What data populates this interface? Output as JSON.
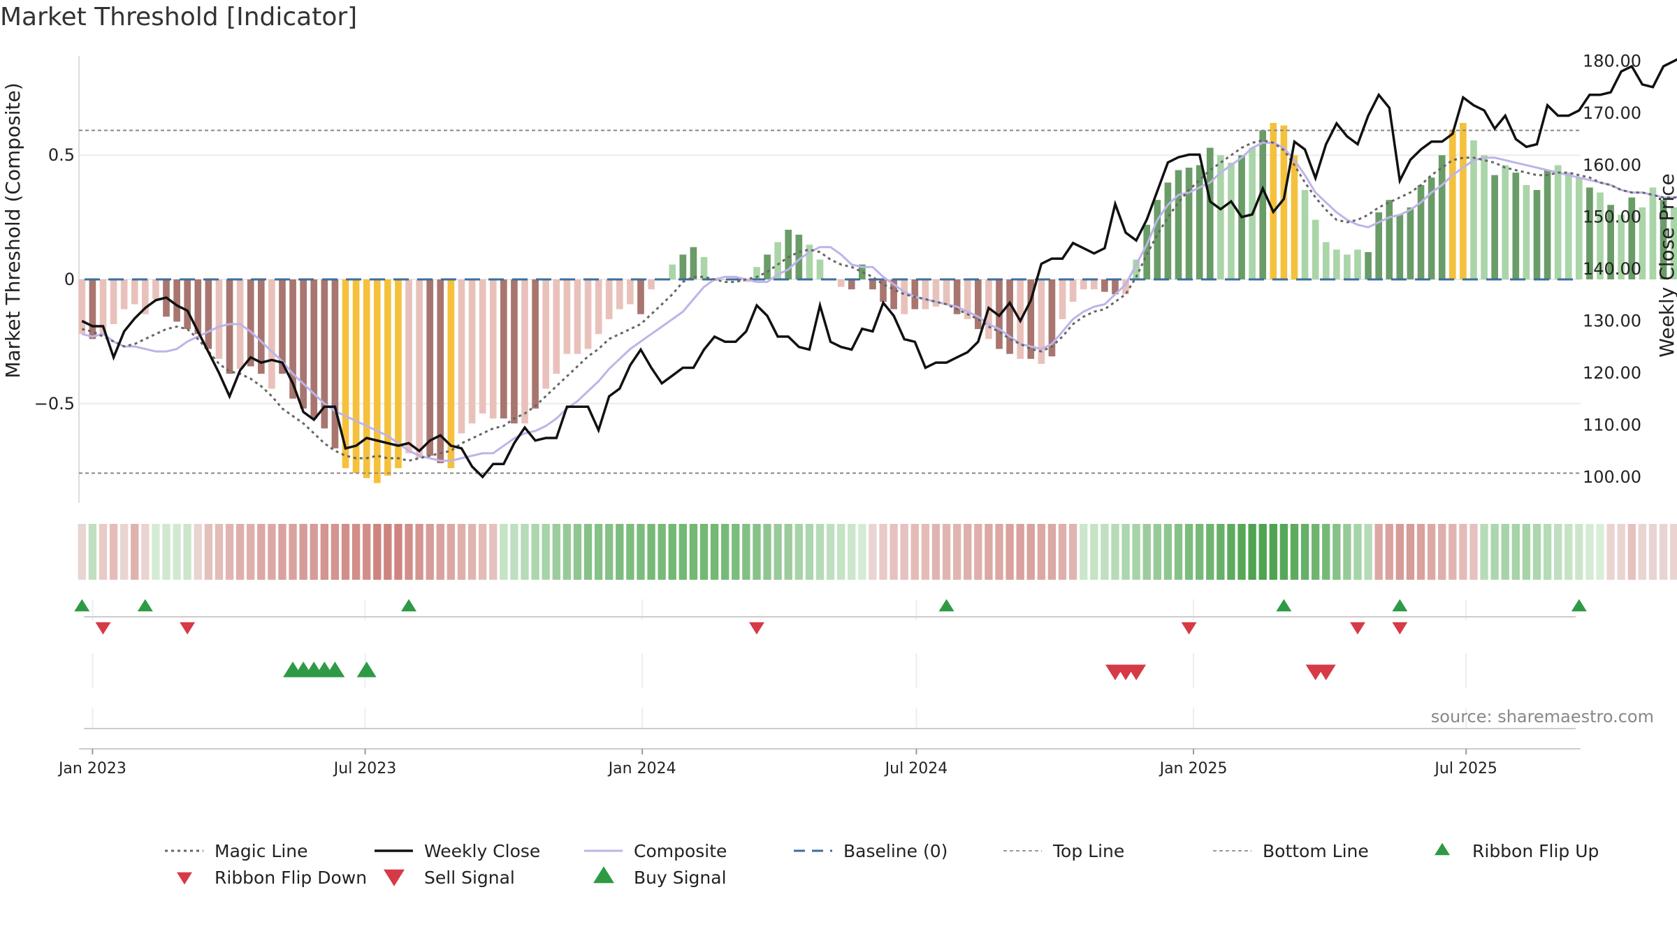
{
  "chart_data": {
    "type": "bar",
    "title": "Market Threshold [Indicator]",
    "ylabel": "Market Threshold (Composite)",
    "y2label": "Weekly Close Price",
    "source": "source: sharemaestro.com",
    "ylim": [
      -0.9,
      0.9
    ],
    "y2lim": [
      95.0,
      181.0
    ],
    "y_ticks": [
      {
        "v": 0.5,
        "label": "0.5"
      },
      {
        "v": 0,
        "label": "0"
      },
      {
        "v": -0.5,
        "label": "−0.5"
      }
    ],
    "y2_ticks": [
      "180.00",
      "170.00",
      "160.00",
      "150.00",
      "140.00",
      "130.00",
      "120.00",
      "110.00",
      "100.00"
    ],
    "x_range": [
      "2022-12-23",
      "2025-09-15"
    ],
    "x_ticks": [
      {
        "label": "Jan 2023",
        "date": "2023-01-01"
      },
      {
        "label": "Jul 2023",
        "date": "2023-07-01"
      },
      {
        "label": "Jan 2024",
        "date": "2024-01-01"
      },
      {
        "label": "Jul 2024",
        "date": "2024-07-01"
      },
      {
        "label": "Jan 2025",
        "date": "2025-01-01"
      },
      {
        "label": "Jul 2025",
        "date": "2025-07-01"
      }
    ],
    "first_week": "2022-12-25",
    "week_days": 7,
    "top_line": 0.6,
    "bottom_line": -0.78,
    "composite": [
      -0.22,
      -0.23,
      -0.22,
      -0.25,
      -0.27,
      -0.27,
      -0.28,
      -0.29,
      -0.29,
      -0.28,
      -0.25,
      -0.23,
      -0.21,
      -0.19,
      -0.18,
      -0.18,
      -0.21,
      -0.25,
      -0.29,
      -0.33,
      -0.38,
      -0.42,
      -0.46,
      -0.5,
      -0.53,
      -0.55,
      -0.57,
      -0.59,
      -0.61,
      -0.63,
      -0.66,
      -0.69,
      -0.71,
      -0.72,
      -0.73,
      -0.73,
      -0.72,
      -0.71,
      -0.7,
      -0.7,
      -0.67,
      -0.64,
      -0.62,
      -0.61,
      -0.59,
      -0.56,
      -0.52,
      -0.49,
      -0.45,
      -0.41,
      -0.36,
      -0.32,
      -0.28,
      -0.25,
      -0.22,
      -0.19,
      -0.16,
      -0.13,
      -0.08,
      -0.03,
      0.0,
      0.01,
      0.01,
      0.0,
      -0.01,
      -0.01,
      0.02,
      0.04,
      0.08,
      0.11,
      0.13,
      0.13,
      0.1,
      0.06,
      0.05,
      0.05,
      0.01,
      -0.02,
      -0.05,
      -0.07,
      -0.08,
      -0.09,
      -0.1,
      -0.11,
      -0.13,
      -0.15,
      -0.18,
      -0.2,
      -0.23,
      -0.26,
      -0.27,
      -0.28,
      -0.26,
      -0.21,
      -0.16,
      -0.13,
      -0.11,
      -0.1,
      -0.06,
      -0.02,
      0.06,
      0.14,
      0.24,
      0.3,
      0.34,
      0.35,
      0.37,
      0.39,
      0.43,
      0.46,
      0.49,
      0.53,
      0.55,
      0.55,
      0.53,
      0.48,
      0.42,
      0.35,
      0.31,
      0.27,
      0.24,
      0.22,
      0.21,
      0.23,
      0.25,
      0.26,
      0.28,
      0.31,
      0.35,
      0.38,
      0.42,
      0.45,
      0.48,
      0.49,
      0.49,
      0.48,
      0.47,
      0.46,
      0.45,
      0.44,
      0.43,
      0.42,
      0.41,
      0.4,
      0.39,
      0.38,
      0.36,
      0.35,
      0.35,
      0.34,
      0.33,
      0.33,
      0.34,
      0.35,
      0.36
    ],
    "bar_values": [
      -0.22,
      -0.24,
      -0.22,
      -0.18,
      -0.12,
      -0.1,
      -0.14,
      -0.08,
      -0.15,
      -0.17,
      -0.2,
      -0.22,
      -0.28,
      -0.32,
      -0.38,
      -0.36,
      -0.35,
      -0.38,
      -0.44,
      -0.38,
      -0.48,
      -0.52,
      -0.56,
      -0.6,
      -0.68,
      -0.76,
      -0.78,
      -0.8,
      -0.82,
      -0.79,
      -0.76,
      -0.7,
      -0.72,
      -0.71,
      -0.74,
      -0.76,
      -0.62,
      -0.58,
      -0.54,
      -0.56,
      -0.56,
      -0.58,
      -0.58,
      -0.52,
      -0.44,
      -0.38,
      -0.3,
      -0.3,
      -0.28,
      -0.22,
      -0.16,
      -0.12,
      -0.1,
      -0.14,
      -0.04,
      0.0,
      0.06,
      0.1,
      0.13,
      0.09,
      0.0,
      0.0,
      0.0,
      -0.01,
      0.05,
      0.1,
      0.15,
      0.2,
      0.18,
      0.14,
      0.08,
      0.0,
      -0.03,
      -0.04,
      0.06,
      -0.04,
      -0.09,
      -0.12,
      -0.14,
      -0.12,
      -0.12,
      -0.11,
      -0.1,
      -0.14,
      -0.16,
      -0.2,
      -0.24,
      -0.28,
      -0.3,
      -0.32,
      -0.32,
      -0.34,
      -0.31,
      -0.16,
      -0.09,
      -0.04,
      -0.04,
      -0.05,
      -0.06,
      -0.06,
      0.08,
      0.22,
      0.32,
      0.39,
      0.44,
      0.45,
      0.46,
      0.53,
      0.5,
      0.47,
      0.5,
      0.53,
      0.6,
      0.63,
      0.62,
      0.5,
      0.36,
      0.24,
      0.15,
      0.12,
      0.1,
      0.12,
      0.11,
      0.27,
      0.32,
      0.26,
      0.29,
      0.38,
      0.41,
      0.5,
      0.6,
      0.63,
      0.56,
      0.5,
      0.42,
      0.46,
      0.43,
      0.38,
      0.36,
      0.44,
      0.46,
      0.43,
      0.41,
      0.37,
      0.35,
      0.3,
      0.26,
      0.33,
      0.29,
      0.37,
      0.32,
      0.29,
      0.28,
      0.38,
      0.36,
      0.37,
      0.4,
      0.44,
      0.49
    ],
    "bar_colors": [
      "#e9c1bb",
      "#a8766f",
      "#e9c1bb",
      "#e9c1bb",
      "#e9c1bb",
      "#e9c1bb",
      "#e9c1bb",
      "#e9c1bb",
      "#a8766f",
      "#a8766f",
      "#a8766f",
      "#a8766f",
      "#a8766f",
      "#e9c1bb",
      "#a8766f",
      "#e9c1bb",
      "#a8766f",
      "#a8766f",
      "#e9c1bb",
      "#a8766f",
      "#a8766f",
      "#a8766f",
      "#a8766f",
      "#a8766f",
      "#a8766f",
      "#f5c13c",
      "#f5c13c",
      "#f5c13c",
      "#f5c13c",
      "#f5c13c",
      "#f5c13c",
      "#e9c1bb",
      "#e9c1bb",
      "#a8766f",
      "#a8766f",
      "#f5c13c",
      "#e9c1bb",
      "#e9c1bb",
      "#e9c1bb",
      "#e9c1bb",
      "#a8766f",
      "#a8766f",
      "#e9c1bb",
      "#a8766f",
      "#e9c1bb",
      "#e9c1bb",
      "#e9c1bb",
      "#e9c1bb",
      "#e9c1bb",
      "#e9c1bb",
      "#e9c1bb",
      "#e9c1bb",
      "#e9c1bb",
      "#a8766f",
      "#e9c1bb",
      "#e9c1bb",
      "#aad5a8",
      "#6a9c68",
      "#6a9c68",
      "#aad5a8",
      "#aad5a8",
      "#aad5a8",
      "#aad5a8",
      "#e9c1bb",
      "#aad5a8",
      "#6a9c68",
      "#aad5a8",
      "#6a9c68",
      "#6a9c68",
      "#aad5a8",
      "#aad5a8",
      "#aad5a8",
      "#e9c1bb",
      "#a8766f",
      "#6a9c68",
      "#a8766f",
      "#a8766f",
      "#a8766f",
      "#e9c1bb",
      "#a8766f",
      "#e9c1bb",
      "#e9c1bb",
      "#e9c1bb",
      "#a8766f",
      "#e9c1bb",
      "#a8766f",
      "#e9c1bb",
      "#a8766f",
      "#a8766f",
      "#e9c1bb",
      "#a8766f",
      "#e9c1bb",
      "#a8766f",
      "#e9c1bb",
      "#e9c1bb",
      "#e9c1bb",
      "#e9c1bb",
      "#a8766f",
      "#a8766f",
      "#e9c1bb",
      "#aad5a8",
      "#6a9c68",
      "#6a9c68",
      "#6a9c68",
      "#6a9c68",
      "#6a9c68",
      "#6a9c68",
      "#6a9c68",
      "#aad5a8",
      "#aad5a8",
      "#6a9c68",
      "#aad5a8",
      "#6a9c68",
      "#f5c13c",
      "#f5c13c",
      "#f5c13c",
      "#aad5a8",
      "#aad5a8",
      "#aad5a8",
      "#aad5a8",
      "#aad5a8",
      "#aad5a8",
      "#6a9c68",
      "#6a9c68",
      "#6a9c68",
      "#6a9c68",
      "#6a9c68",
      "#6a9c68",
      "#6a9c68",
      "#6a9c68",
      "#f5c13c",
      "#f5c13c",
      "#aad5a8",
      "#aad5a8",
      "#6a9c68",
      "#aad5a8",
      "#6a9c68",
      "#aad5a8",
      "#6a9c68",
      "#6a9c68",
      "#aad5a8",
      "#aad5a8",
      "#aad5a8",
      "#6a9c68",
      "#aad5a8",
      "#6a9c68",
      "#aad5a8",
      "#6a9c68",
      "#aad5a8",
      "#aad5a8",
      "#6a9c68",
      "#aad5a8",
      "#6a9c68",
      "#6a9c68",
      "#6a9c68",
      "#6a9c68"
    ],
    "magic_line": [
      -0.2,
      -0.21,
      -0.23,
      -0.25,
      -0.27,
      -0.26,
      -0.24,
      -0.22,
      -0.2,
      -0.19,
      -0.2,
      -0.24,
      -0.29,
      -0.34,
      -0.37,
      -0.38,
      -0.4,
      -0.43,
      -0.47,
      -0.52,
      -0.55,
      -0.58,
      -0.62,
      -0.66,
      -0.69,
      -0.71,
      -0.72,
      -0.72,
      -0.71,
      -0.72,
      -0.72,
      -0.73,
      -0.72,
      -0.71,
      -0.7,
      -0.69,
      -0.66,
      -0.64,
      -0.62,
      -0.6,
      -0.59,
      -0.56,
      -0.54,
      -0.51,
      -0.47,
      -0.43,
      -0.39,
      -0.35,
      -0.31,
      -0.28,
      -0.24,
      -0.22,
      -0.2,
      -0.18,
      -0.14,
      -0.1,
      -0.06,
      -0.01,
      0.01,
      0.01,
      0.0,
      -0.01,
      -0.01,
      0.0,
      0.01,
      0.03,
      0.06,
      0.09,
      0.11,
      0.12,
      0.11,
      0.08,
      0.06,
      0.05,
      0.03,
      0.01,
      -0.02,
      -0.04,
      -0.06,
      -0.07,
      -0.08,
      -0.09,
      -0.1,
      -0.12,
      -0.14,
      -0.16,
      -0.19,
      -0.21,
      -0.24,
      -0.26,
      -0.28,
      -0.29,
      -0.27,
      -0.23,
      -0.18,
      -0.15,
      -0.13,
      -0.12,
      -0.09,
      -0.06,
      0.01,
      0.1,
      0.18,
      0.25,
      0.31,
      0.36,
      0.4,
      0.44,
      0.47,
      0.5,
      0.53,
      0.55,
      0.56,
      0.55,
      0.52,
      0.46,
      0.39,
      0.33,
      0.28,
      0.24,
      0.23,
      0.24,
      0.26,
      0.29,
      0.31,
      0.33,
      0.35,
      0.38,
      0.42,
      0.45,
      0.48,
      0.49,
      0.49,
      0.48,
      0.47,
      0.45,
      0.44,
      0.43,
      0.42,
      0.42,
      0.43,
      0.43,
      0.42,
      0.41,
      0.39,
      0.38,
      0.36,
      0.35,
      0.35,
      0.34,
      0.33,
      0.33,
      0.33,
      0.34,
      0.35,
      0.37,
      0.4
    ],
    "weekly_close": [
      130.0,
      129.0,
      129.0,
      123.0,
      128.0,
      130.5,
      132.5,
      134.0,
      134.5,
      133.0,
      132.0,
      128.0,
      124.0,
      120.0,
      115.5,
      120.5,
      123.0,
      122.0,
      122.5,
      122.0,
      118.0,
      112.5,
      111.0,
      113.5,
      113.5,
      105.5,
      106.0,
      107.5,
      107.0,
      106.5,
      106.0,
      106.5,
      105.0,
      107.0,
      108.0,
      106.0,
      105.5,
      102.0,
      100.0,
      102.5,
      102.5,
      106.5,
      109.5,
      107.0,
      107.5,
      107.5,
      113.5,
      113.5,
      113.5,
      109.0,
      115.5,
      117.0,
      121.5,
      124.5,
      121.0,
      118.0,
      119.5,
      121.0,
      121.0,
      124.5,
      127.0,
      126.0,
      126.0,
      128.0,
      133.0,
      131.0,
      127.0,
      127.0,
      125.0,
      124.5,
      133.0,
      126.0,
      125.0,
      124.5,
      128.5,
      128.0,
      133.5,
      131.0,
      126.5,
      126.0,
      121.0,
      122.0,
      122.0,
      123.0,
      124.0,
      126.0,
      132.5,
      131.0,
      133.5,
      130.0,
      134.0,
      141.0,
      142.0,
      142.0,
      145.0,
      144.0,
      143.0,
      144.0,
      152.5,
      147.0,
      145.5,
      149.5,
      155.0,
      160.5,
      161.5,
      162.0,
      162.0,
      153.0,
      151.5,
      153.0,
      150.0,
      150.5,
      155.5,
      151.0,
      153.5,
      164.5,
      163.0,
      157.5,
      164.0,
      168.0,
      165.5,
      164.0,
      169.5,
      173.5,
      171.0,
      157.0,
      161.0,
      163.0,
      164.5,
      164.5,
      166.0,
      173.0,
      171.5,
      170.5,
      167.0,
      169.5,
      165.0,
      163.5,
      164.0,
      171.5,
      169.5,
      169.5,
      170.5,
      173.5,
      173.5,
      174.0,
      178.0,
      179.0,
      175.5,
      175.0,
      179.0,
      180.0,
      181.0,
      176.5,
      175.5
    ],
    "ribbon": [
      "#e9d4d2",
      "#bfdfc0",
      "#e9cac6",
      "#e5bcb8",
      "#e9d4d2",
      "#e1b1ad",
      "#e9d4d2",
      "#d4ebd4",
      "#cfe8cf",
      "#d1e9d1",
      "#cce6cc",
      "#e9d4d2",
      "#e4c0bc",
      "#e3bcb8",
      "#e0b5b1",
      "#deafab",
      "#deafab",
      "#dba8a4",
      "#dba8a4",
      "#d9a29e",
      "#d9a29e",
      "#d69c98",
      "#d69c98",
      "#d4948f",
      "#d4948f",
      "#d28e89",
      "#d28e89",
      "#d28e89",
      "#cf8480",
      "#cf8480",
      "#cf8480",
      "#d28e89",
      "#d4948f",
      "#d69c98",
      "#d9a29e",
      "#dba8a4",
      "#deafab",
      "#e0b5b1",
      "#e3bcb8",
      "#e5c2bf",
      "#c4e4c4",
      "#bfdfc0",
      "#b6dbb7",
      "#acd6ad",
      "#a6d3a7",
      "#9ccc9d",
      "#97ca98",
      "#8fc690",
      "#86c187",
      "#86c187",
      "#86c187",
      "#7cbc7d",
      "#7cbc7d",
      "#7cbc7d",
      "#77ba78",
      "#77ba78",
      "#73b874",
      "#73b874",
      "#73b874",
      "#73b874",
      "#73b874",
      "#77ba78",
      "#7cbc7d",
      "#82bf83",
      "#86c187",
      "#8fc690",
      "#97ca98",
      "#9ccc9d",
      "#a6d3a7",
      "#acd6ad",
      "#b6dbb7",
      "#bfdfc0",
      "#c4e4c4",
      "#cce6cc",
      "#d4ebd4",
      "#e9d4d2",
      "#e9cac6",
      "#e5c2bf",
      "#e5c2bf",
      "#e3bcb8",
      "#e3bcb8",
      "#e0b5b1",
      "#e0b5b1",
      "#e0b5b1",
      "#deafab",
      "#deafab",
      "#dba8a4",
      "#dba8a4",
      "#d9a29e",
      "#d9a29e",
      "#d9a29e",
      "#dba8a4",
      "#dba8a4",
      "#deafab",
      "#e0b5b1",
      "#cce6cc",
      "#c4e4c4",
      "#bfdfc0",
      "#b6dbb7",
      "#acd6ad",
      "#a6d3a7",
      "#9ccc9d",
      "#97ca98",
      "#8fc690",
      "#86c187",
      "#7cbc7d",
      "#77ba78",
      "#6fb570",
      "#66b067",
      "#5eab5f",
      "#57a758",
      "#4fa351",
      "#4fa351",
      "#4fa351",
      "#57a758",
      "#5eab5f",
      "#66b067",
      "#6fb570",
      "#77ba78",
      "#86c187",
      "#97ca98",
      "#a6d3a7",
      "#b6dbb7",
      "#dba8a4",
      "#d9a29e",
      "#d69c98",
      "#d69c98",
      "#d9a29e",
      "#dba8a4",
      "#deafab",
      "#e0b5b1",
      "#e3bcb8",
      "#e5c2bf",
      "#b6dbb7",
      "#acd6ad",
      "#a6d3a7",
      "#a6d3a7",
      "#a6d3a7",
      "#acd6ad",
      "#b6dbb7",
      "#bfdfc0",
      "#c4e4c4",
      "#cce6cc",
      "#d4ebd4",
      "#d9eed9",
      "#e9d4d2",
      "#e9d4d2",
      "#e5c2bf",
      "#e9d4d2",
      "#e9d4d2",
      "#e9d4d2",
      "#e9d4d2",
      "#e9d4d2",
      "#e9d4d2",
      "#e9d4d2",
      "#e9d4d2",
      "#e9cac6",
      "#e9d4d2",
      "#bfdfc0"
    ],
    "ribbon_flip_up": [
      0,
      6,
      31,
      82,
      114,
      125,
      142
    ],
    "ribbon_flip_down": [
      2,
      10,
      64,
      105,
      121,
      125
    ],
    "buy_signal": [
      20,
      21,
      22,
      23,
      24,
      27
    ],
    "sell_signal": [
      98,
      99,
      100,
      117,
      118
    ],
    "colors": {
      "buy": "#2e9a46",
      "sell": "#d63a46",
      "baseline": "#3b6e9e",
      "composite": "#bdb4e8",
      "close": "#111111",
      "gold": "#f5c13c"
    },
    "legend": [
      {
        "label": "Magic Line",
        "icon": "dotted-line"
      },
      {
        "label": "Weekly Close",
        "icon": "solid-line"
      },
      {
        "label": "Composite",
        "icon": "lavender-line"
      },
      {
        "label": "Baseline (0)",
        "icon": "dashed-blue-line"
      },
      {
        "label": "Top Line",
        "icon": "dotted-grey-line"
      },
      {
        "label": "Bottom Line",
        "icon": "dotted-grey-line"
      },
      {
        "label": "Ribbon Flip Up",
        "icon": "green-up-triangle"
      },
      {
        "label": "Ribbon Flip Down",
        "icon": "red-down-triangle"
      },
      {
        "label": "Sell Signal",
        "icon": "big-red-down-triangle"
      },
      {
        "label": "Buy Signal",
        "icon": "big-green-up-triangle"
      }
    ]
  }
}
